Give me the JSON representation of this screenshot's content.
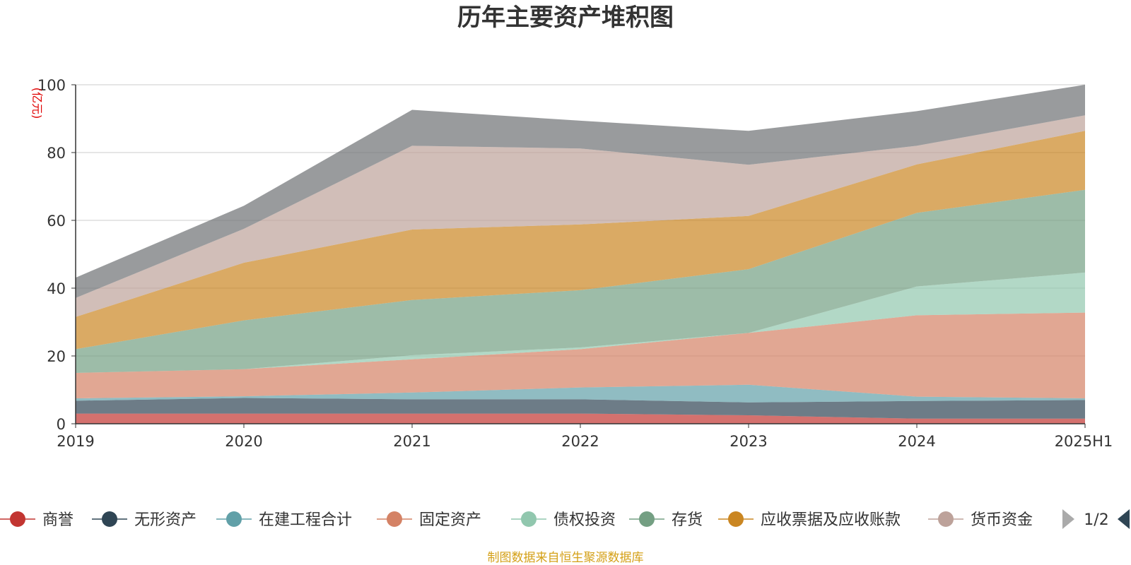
{
  "chart_data": {
    "type": "area",
    "stacked": true,
    "title": "历年主要资产堆积图",
    "unit_label": "(亿元)",
    "x": [
      "2019",
      "2020",
      "2021",
      "2022",
      "2023",
      "2024",
      "2025H1"
    ],
    "ylim": [
      0,
      100
    ],
    "yticks": [
      0,
      20,
      40,
      60,
      80,
      100
    ],
    "grid": true,
    "legend_position": "bottom",
    "series": [
      {
        "name": "商誉",
        "color": "#c23531",
        "values": [
          3.0,
          3.0,
          3.0,
          3.0,
          2.5,
          1.5,
          1.5
        ]
      },
      {
        "name": "无形资产",
        "color": "#2f4554",
        "values": [
          3.8,
          4.6,
          4.2,
          4.2,
          3.8,
          5.2,
          5.5
        ]
      },
      {
        "name": "在建工程合计",
        "color": "#61a0a8",
        "values": [
          0.7,
          0.5,
          2.0,
          3.5,
          5.2,
          1.3,
          0.5
        ]
      },
      {
        "name": "固定资产",
        "color": "#d48265",
        "values": [
          7.5,
          8.0,
          9.8,
          11.3,
          15.3,
          24.0,
          25.3
        ]
      },
      {
        "name": "债权投资",
        "color": "#91c7ae",
        "values": [
          0.0,
          0.0,
          1.2,
          0.5,
          0.0,
          8.5,
          11.8
        ]
      },
      {
        "name": "存货",
        "color": "#749f83",
        "values": [
          7.0,
          14.4,
          16.3,
          16.9,
          18.8,
          21.7,
          24.4
        ]
      },
      {
        "name": "应收票据及应收账款",
        "color": "#ca8622",
        "values": [
          9.5,
          17.0,
          20.8,
          19.4,
          15.7,
          14.3,
          17.4
        ]
      },
      {
        "name": "货币资金",
        "color": "#bda29a",
        "values": [
          5.6,
          10.0,
          24.7,
          22.4,
          15.1,
          5.5,
          4.6
        ]
      },
      {
        "name": "",
        "color": "#6e7074",
        "values": [
          6.0,
          6.8,
          10.6,
          8.2,
          10.0,
          10.2,
          9.0
        ]
      }
    ]
  },
  "legend": {
    "items": [
      "商誉",
      "无形资产",
      "在建工程合计",
      "固定资产",
      "债权投资",
      "存货",
      "应收票据及应收账款",
      "货币资金"
    ],
    "page": "1/2"
  },
  "footer": {
    "source": "制图数据来自恒生聚源数据库",
    "color": "#d4a017"
  }
}
